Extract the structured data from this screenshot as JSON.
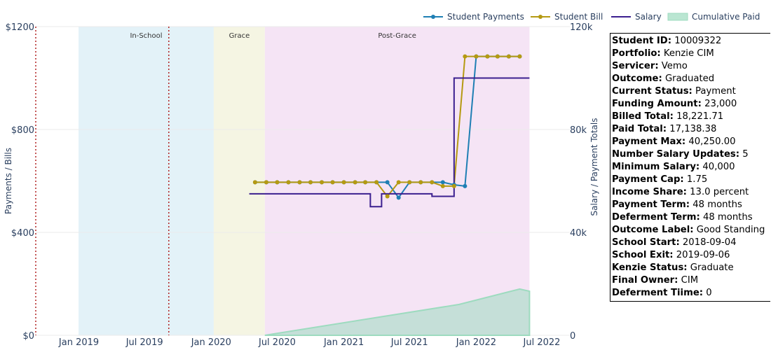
{
  "chart_data": {
    "type": "line",
    "legend": {
      "placement": "top-right",
      "entries": [
        {
          "name": "Student Payments",
          "color": "#1f7fb4",
          "marker": true
        },
        {
          "name": "Student Bill",
          "color": "#b59a12",
          "marker": true
        },
        {
          "name": "Salary",
          "color": "#3b1f8f",
          "marker": false
        },
        {
          "name": "Cumulative Paid",
          "color": "#9ddbbf",
          "marker": false,
          "fill": true
        }
      ]
    },
    "x_axis": {
      "type": "date",
      "range": [
        "2018-09-04",
        "2022-07-01"
      ],
      "ticks": [
        {
          "date": "2019-01-01",
          "label": "Jan 2019"
        },
        {
          "date": "2019-07-01",
          "label": "Jul 2019"
        },
        {
          "date": "2020-01-01",
          "label": "Jan 2020"
        },
        {
          "date": "2020-07-01",
          "label": "Jul 2020"
        },
        {
          "date": "2021-01-01",
          "label": "Jan 2021"
        },
        {
          "date": "2021-07-01",
          "label": "Jul 2021"
        },
        {
          "date": "2022-01-01",
          "label": "Jan 2022"
        },
        {
          "date": "2022-07-01",
          "label": "Jul 2022"
        }
      ]
    },
    "y_left": {
      "label": "Payments / Bills",
      "range": [
        0,
        1200
      ],
      "ticks": [
        {
          "v": 0,
          "label": "$0"
        },
        {
          "v": 400,
          "label": "$400"
        },
        {
          "v": 800,
          "label": "$800"
        },
        {
          "v": 1200,
          "label": "$1200"
        }
      ]
    },
    "y_right": {
      "label": "Salary / Payment Totals",
      "range": [
        0,
        120000
      ],
      "ticks": [
        {
          "v": 0,
          "label": "0"
        },
        {
          "v": 40000,
          "label": "40k"
        },
        {
          "v": 80000,
          "label": "80k"
        },
        {
          "v": 120000,
          "label": "120k"
        }
      ]
    },
    "grid": true,
    "regions": [
      {
        "label": "In-School",
        "start": "2018-12-31",
        "end": "2020-01-08",
        "color": "#e3f2f8"
      },
      {
        "label": "Grace",
        "start": "2020-01-08",
        "end": "2020-05-28",
        "color": "#f5f5e3"
      },
      {
        "label": "Post-Grace",
        "start": "2020-05-28",
        "end": "2022-05-28",
        "color": "#f5e4f5"
      }
    ],
    "vlines": [
      {
        "date": "2018-09-04",
        "color": "#b22222"
      },
      {
        "date": "2019-09-06",
        "color": "#b22222"
      }
    ],
    "series": [
      {
        "name": "Student Payments",
        "axis": "left",
        "x": [
          "2020-05-01",
          "2020-06-01",
          "2020-07-01",
          "2020-08-01",
          "2020-09-01",
          "2020-10-01",
          "2020-11-01",
          "2020-12-01",
          "2021-01-01",
          "2021-02-01",
          "2021-03-01",
          "2021-04-01",
          "2021-05-01",
          "2021-06-01",
          "2021-07-01",
          "2021-08-01",
          "2021-09-01",
          "2021-10-01",
          "2021-11-01",
          "2021-12-01",
          "2022-01-01",
          "2022-02-01",
          "2022-03-01",
          "2022-04-01",
          "2022-05-01"
        ],
        "y": [
          595,
          595,
          595,
          595,
          595,
          595,
          595,
          595,
          595,
          595,
          595,
          595,
          595,
          535,
          595,
          595,
          595,
          595,
          585,
          580,
          1084,
          1084,
          1084,
          1084,
          1084
        ]
      },
      {
        "name": "Student Bill",
        "axis": "left",
        "x": [
          "2020-05-01",
          "2020-06-01",
          "2020-07-01",
          "2020-08-01",
          "2020-09-01",
          "2020-10-01",
          "2020-11-01",
          "2020-12-01",
          "2021-01-01",
          "2021-02-01",
          "2021-03-01",
          "2021-04-01",
          "2021-05-01",
          "2021-06-01",
          "2021-07-01",
          "2021-08-01",
          "2021-09-01",
          "2021-10-01",
          "2021-11-01",
          "2021-12-01",
          "2022-01-01",
          "2022-02-01",
          "2022-03-01",
          "2022-04-01",
          "2022-05-01"
        ],
        "y": [
          595,
          595,
          595,
          595,
          595,
          595,
          595,
          595,
          595,
          595,
          595,
          595,
          540,
          595,
          595,
          595,
          595,
          580,
          580,
          1084,
          1084,
          1084,
          1084,
          1084,
          1084
        ]
      },
      {
        "name": "Salary",
        "axis": "right",
        "shape": "step",
        "x": [
          "2020-04-15",
          "2021-03-15",
          "2021-04-15",
          "2021-06-15",
          "2021-09-01",
          "2021-11-01",
          "2022-05-28"
        ],
        "y": [
          55000,
          50000,
          55000,
          55000,
          54000,
          100000,
          100000
        ]
      },
      {
        "name": "Cumulative Paid",
        "axis": "right",
        "fill": "tozeroy",
        "x": [
          "2020-05-28",
          "2021-11-15",
          "2022-05-01",
          "2022-05-28"
        ],
        "y": [
          0,
          12000,
          18000,
          17138
        ]
      }
    ]
  },
  "info": [
    {
      "key": "Student ID:",
      "value": "10009322"
    },
    {
      "key": "Portfolio:",
      "value": "Kenzie CIM"
    },
    {
      "key": "Servicer:",
      "value": "Vemo"
    },
    {
      "key": "Outcome:",
      "value": "Graduated"
    },
    {
      "key": "Current Status:",
      "value": "Payment"
    },
    {
      "key": "Funding Amount:",
      "value": "23,000"
    },
    {
      "key": "Billed Total:",
      "value": "18,221.71"
    },
    {
      "key": "Paid Total:",
      "value": "17,138.38"
    },
    {
      "key": "Payment Max:",
      "value": "40,250.00"
    },
    {
      "key": "Number Salary Updates:",
      "value": "5"
    },
    {
      "key": "Minimum Salary:",
      "value": "40,000"
    },
    {
      "key": "Payment Cap:",
      "value": "1.75"
    },
    {
      "key": "Income Share:",
      "value": "13.0 percent"
    },
    {
      "key": "Payment Term:",
      "value": "48 months"
    },
    {
      "key": "Deferment Term:",
      "value": "48 months"
    },
    {
      "key": "Outcome Label:",
      "value": "Good Standing"
    },
    {
      "key": "School Start:",
      "value": "2018-09-04"
    },
    {
      "key": "School Exit:",
      "value": "2019-09-06"
    },
    {
      "key": "Kenzie Status:",
      "value": "Graduate"
    },
    {
      "key": "Final Owner:",
      "value": "CIM"
    },
    {
      "key": "Deferment Tiime:",
      "value": "0"
    }
  ]
}
